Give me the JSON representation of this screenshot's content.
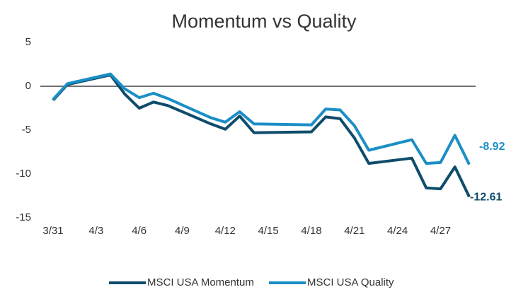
{
  "chart_data": {
    "type": "line",
    "title": "Momentum vs Quality",
    "x": [
      "3/31",
      "4/1",
      "4/4",
      "4/5",
      "4/6",
      "4/7",
      "4/8",
      "4/11",
      "4/12",
      "4/13",
      "4/14",
      "4/18",
      "4/19",
      "4/20",
      "4/21",
      "4/22",
      "4/25",
      "4/26",
      "4/27",
      "4/28",
      "4/29"
    ],
    "series": [
      {
        "name": "MSCI USA Momentum",
        "color": "#0f4c6b",
        "values": [
          -1.6,
          0.2,
          1.3,
          -0.9,
          -2.5,
          -1.8,
          -2.2,
          -4.3,
          -4.9,
          -3.4,
          -5.3,
          -5.2,
          -3.5,
          -3.7,
          -5.9,
          -8.8,
          -8.2,
          -11.6,
          -11.7,
          -9.2,
          -12.61
        ]
      },
      {
        "name": "MSCI USA Quality",
        "color": "#1b8ec6",
        "values": [
          -1.5,
          0.3,
          1.4,
          -0.3,
          -1.3,
          -0.8,
          -1.4,
          -3.6,
          -4.1,
          -2.9,
          -4.3,
          -4.4,
          -2.6,
          -2.7,
          -4.5,
          -7.3,
          -6.1,
          -8.8,
          -8.7,
          -5.6,
          -8.92
        ]
      }
    ],
    "xticks": [
      "3/31",
      "4/3",
      "4/6",
      "4/9",
      "4/12",
      "4/15",
      "4/18",
      "4/21",
      "4/24",
      "4/27"
    ],
    "ylim": [
      -15,
      5
    ],
    "yticks": [
      5,
      0,
      -5,
      -10,
      -15
    ],
    "grid": false,
    "legend": "bottom"
  }
}
